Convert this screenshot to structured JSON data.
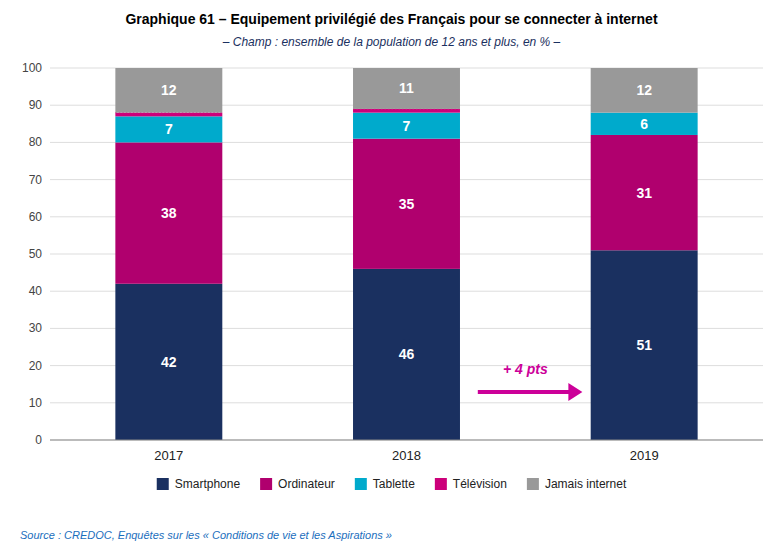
{
  "chart_data": {
    "type": "bar",
    "stacked": true,
    "title": "Graphique 61 – Equipement privilégié des Français pour se connecter à internet",
    "subtitle": "– Champ : ensemble de la population de 12 ans et plus, en % –",
    "source": "Source : CREDOC, Enquêtes sur les « Conditions de vie et les Aspirations »",
    "categories": [
      "2017",
      "2018",
      "2019"
    ],
    "series": [
      {
        "name": "Smartphone",
        "color": "#1a3060",
        "values": [
          42,
          46,
          51
        ]
      },
      {
        "name": "Ordinateur",
        "color": "#b0006e",
        "values": [
          38,
          35,
          31
        ]
      },
      {
        "name": "Tablette",
        "color": "#00aacc",
        "values": [
          7,
          7,
          6
        ]
      },
      {
        "name": "Télévision",
        "color": "#cc007a",
        "values": [
          1,
          1,
          0
        ],
        "value_labels": [
          null,
          null,
          null
        ]
      },
      {
        "name": "Jamais internet",
        "color": "#999999",
        "values": [
          12,
          11,
          12
        ]
      }
    ],
    "annotations": [
      {
        "text": "+ 4 pts",
        "color": "#cc0099"
      }
    ],
    "ylim": [
      0,
      100
    ],
    "yticks": [
      0,
      10,
      20,
      30,
      40,
      50,
      60,
      70,
      80,
      90,
      100
    ],
    "grid": true,
    "data_labels": true,
    "legend": "bottom"
  }
}
